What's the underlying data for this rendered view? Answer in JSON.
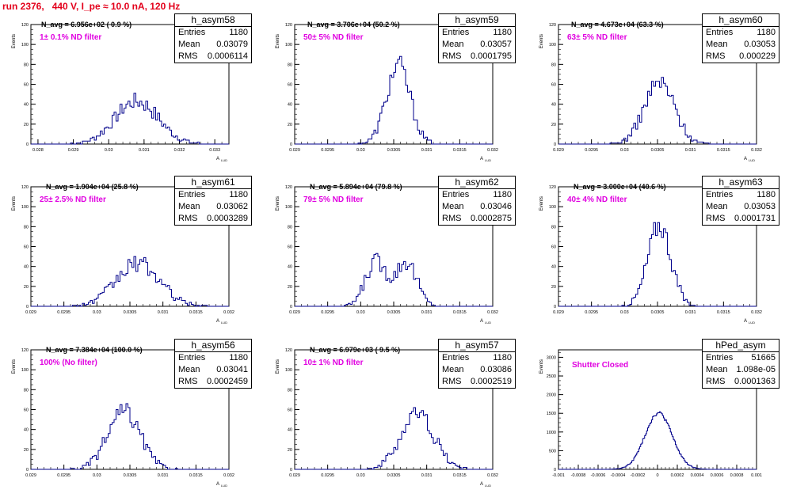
{
  "run_title": "run 2376,   440 V, I_pe ≈ 10.0 nA, 120 Hz",
  "stats_labels": {
    "entries": "Entries",
    "mean": "Mean",
    "rms": "RMS"
  },
  "ylabel": "Events",
  "xlabel": "A",
  "xlabel_sub": "LUD",
  "chart_data": [
    {
      "type": "histogram",
      "name": "h_asym58",
      "navg": "N_avg = 6.956e+02 ( 0.9 %)",
      "filter": "1± 0.1% ND filter",
      "entries": "1180",
      "mean": "0.03079",
      "rms": "0.0006114",
      "xlim": [
        0.0278,
        0.0334
      ],
      "ylim": [
        0,
        120
      ],
      "xticks": [
        "0.028",
        "0.029",
        "0.03",
        "0.031",
        "0.032",
        "0.033"
      ],
      "yticks": [
        "0",
        "20",
        "40",
        "60",
        "80",
        "100",
        "120"
      ],
      "mean_val": 0.03079,
      "rms_val": 0.0006114,
      "total": 1180,
      "bins": 100
    },
    {
      "type": "histogram",
      "name": "h_asym59",
      "navg": "N_avg = 3.706e+04 (50.2 %)",
      "filter": "50± 5% ND filter",
      "entries": "1180",
      "mean": "0.03057",
      "rms": "0.0001795",
      "xlim": [
        0.029,
        0.032
      ],
      "ylim": [
        0,
        120
      ],
      "xticks": [
        "0.029",
        "0.0295",
        "0.03",
        "0.0305",
        "0.031",
        "0.0315",
        "0.032"
      ],
      "yticks": [
        "0",
        "20",
        "40",
        "60",
        "80",
        "100",
        "120"
      ],
      "mean_val": 0.03057,
      "rms_val": 0.0001795,
      "total": 1180,
      "bins": 100
    },
    {
      "type": "histogram",
      "name": "h_asym60",
      "navg": "N_avg = 4.673e+04 (63.3 %)",
      "filter": "63± 5% ND filter",
      "entries": "1180",
      "mean": "0.03053",
      "rms": "0.000229",
      "xlim": [
        0.029,
        0.032
      ],
      "ylim": [
        0,
        120
      ],
      "xticks": [
        "0.029",
        "0.0295",
        "0.03",
        "0.0305",
        "0.031",
        "0.0315",
        "0.032"
      ],
      "yticks": [
        "0",
        "20",
        "40",
        "60",
        "80",
        "100",
        "120"
      ],
      "mean_val": 0.03053,
      "rms_val": 0.000229,
      "total": 1180,
      "bins": 100
    },
    {
      "type": "histogram",
      "name": "h_asym61",
      "navg": "N_avg = 1.904e+04 (25.8 %)",
      "filter": "25± 2.5% ND filter",
      "entries": "1180",
      "mean": "0.03062",
      "rms": "0.0003289",
      "xlim": [
        0.029,
        0.032
      ],
      "ylim": [
        0,
        120
      ],
      "xticks": [
        "0.029",
        "0.0295",
        "0.03",
        "0.0305",
        "0.031",
        "0.0315",
        "0.032"
      ],
      "yticks": [
        "0",
        "20",
        "40",
        "60",
        "80",
        "100",
        "120"
      ],
      "mean_val": 0.03062,
      "rms_val": 0.0003289,
      "total": 1180,
      "bins": 100
    },
    {
      "type": "histogram",
      "name": "h_asym62",
      "navg": "N_avg = 5.894e+04 (79.8 %)",
      "filter": "79± 5% ND filter",
      "entries": "1180",
      "mean": "0.03046",
      "rms": "0.0002875",
      "xlim": [
        0.029,
        0.032
      ],
      "ylim": [
        0,
        120
      ],
      "xticks": [
        "0.029",
        "0.0295",
        "0.03",
        "0.0305",
        "0.031",
        "0.0315",
        "0.032"
      ],
      "yticks": [
        "0",
        "20",
        "40",
        "60",
        "80",
        "100",
        "120"
      ],
      "mean_val": 0.03046,
      "rms_val": 0.0002875,
      "total": 1180,
      "bins": 100,
      "bimodal": true
    },
    {
      "type": "histogram",
      "name": "h_asym63",
      "navg": "N_avg = 3.000e+04 (40.6 %)",
      "filter": "40± 4% ND filter",
      "entries": "1180",
      "mean": "0.03053",
      "rms": "0.0001731",
      "xlim": [
        0.029,
        0.032
      ],
      "ylim": [
        0,
        120
      ],
      "xticks": [
        "0.029",
        "0.0295",
        "0.03",
        "0.0305",
        "0.031",
        "0.0315",
        "0.032"
      ],
      "yticks": [
        "0",
        "20",
        "40",
        "60",
        "80",
        "100",
        "120"
      ],
      "mean_val": 0.03053,
      "rms_val": 0.0001731,
      "total": 1180,
      "bins": 100
    },
    {
      "type": "histogram",
      "name": "h_asym56",
      "navg": "N_avg = 7.384e+04 (100.0 %)",
      "filter": "100% (No filter)",
      "entries": "1180",
      "mean": "0.03041",
      "rms": "0.0002459",
      "xlim": [
        0.029,
        0.032
      ],
      "ylim": [
        0,
        120
      ],
      "xticks": [
        "0.029",
        "0.0295",
        "0.03",
        "0.0305",
        "0.031",
        "0.0315",
        "0.032"
      ],
      "yticks": [
        "0",
        "20",
        "40",
        "60",
        "80",
        "100",
        "120"
      ],
      "mean_val": 0.03041,
      "rms_val": 0.0002459,
      "total": 1180,
      "bins": 100
    },
    {
      "type": "histogram",
      "name": "h_asym57",
      "navg": "N_avg = 6.979e+03 ( 9.5 %)",
      "filter": "10± 1% ND filter",
      "entries": "1180",
      "mean": "0.03086",
      "rms": "0.0002519",
      "xlim": [
        0.029,
        0.032
      ],
      "ylim": [
        0,
        120
      ],
      "xticks": [
        "0.029",
        "0.0295",
        "0.03",
        "0.0305",
        "0.031",
        "0.0315",
        "0.032"
      ],
      "yticks": [
        "0",
        "20",
        "40",
        "60",
        "80",
        "100",
        "120"
      ],
      "mean_val": 0.03086,
      "rms_val": 0.0002519,
      "total": 1180,
      "bins": 100
    },
    {
      "type": "histogram",
      "name": "hPed_asym",
      "navg": "",
      "filter": "Shutter Closed",
      "entries": "51665",
      "mean": "1.098e-05",
      "rms": "0.0001363",
      "xlim": [
        -0.001,
        0.001
      ],
      "ylim": [
        0,
        3200
      ],
      "xticks": [
        "-0.001",
        "-0.0008",
        "-0.0006",
        "-0.0004",
        "-0.0002",
        "0",
        "0.0002",
        "0.0004",
        "0.0006",
        "0.0008",
        "0.001"
      ],
      "yticks": [
        "0",
        "500",
        "1000",
        "1500",
        "2000",
        "2500",
        "3000"
      ],
      "mean_val": 1.098e-05,
      "rms_val": 0.0001363,
      "total": 51665,
      "bins": 200
    }
  ]
}
